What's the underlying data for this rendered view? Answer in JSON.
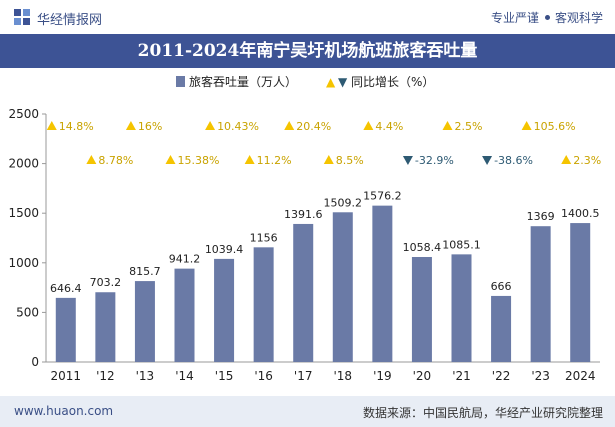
{
  "header": {
    "brand": "华经情报网",
    "tagline_left": "专业严谨",
    "tagline_right": "客观科学"
  },
  "title": "2011-2024年南宁吴圩机场航班旅客吞吐量",
  "footer": {
    "website": "www.huaon.com",
    "source": "数据来源：中国民航局，华经产业研究院整理"
  },
  "colors": {
    "bar": "#6a7aa6",
    "up": "#f5c400",
    "down": "#2e5a73",
    "title_bg": "#3d5395"
  },
  "chart_data": {
    "type": "bar",
    "categories": [
      "2011",
      "'12",
      "'13",
      "'14",
      "'15",
      "'16",
      "'17",
      "'18",
      "'19",
      "'20",
      "'21",
      "'22",
      "'23",
      "2024"
    ],
    "series": [
      {
        "name": "旅客吞吐量（万人）",
        "values": [
          646.4,
          703.2,
          815.7,
          941.2,
          1039.4,
          1156,
          1391.6,
          1509.2,
          1576.2,
          1058.4,
          1085.1,
          666,
          1369,
          1400.5
        ],
        "labels": [
          "646.4",
          "703.2",
          "815.7",
          "941.2",
          "1039.4",
          "1156",
          "1391.6",
          "1509.2",
          "1576.2",
          "1058.4",
          "1085.1",
          "666",
          "1369",
          "1400.5"
        ]
      },
      {
        "name": "同比增长（%）",
        "values": [
          14.8,
          8.78,
          16,
          15.38,
          10.43,
          11.2,
          20.4,
          8.5,
          4.4,
          -32.9,
          2.5,
          -38.6,
          105.6,
          2.3
        ],
        "labels": [
          "14.8%",
          "8.78%",
          "16%",
          "15.38%",
          "10.43%",
          "11.2%",
          "20.4%",
          "8.5%",
          "4.4%",
          "-32.9%",
          "2.5%",
          "-38.6%",
          "105.6%",
          "2.3%"
        ]
      }
    ],
    "y_ticks": [
      "0",
      "500",
      "1000",
      "1500",
      "2000",
      "2500"
    ],
    "ylim": [
      0,
      2500
    ],
    "legend_position": "top-center",
    "legend_up_marker": "▲",
    "legend_down_marker": "▼"
  }
}
